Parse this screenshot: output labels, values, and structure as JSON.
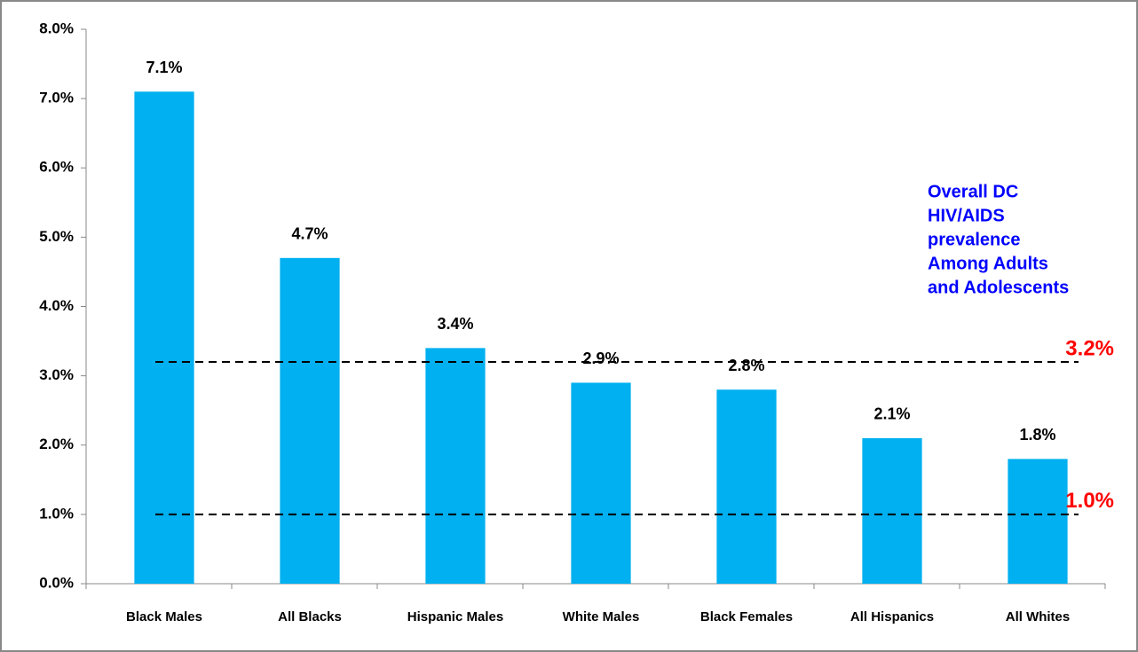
{
  "chart_data": {
    "type": "bar",
    "categories": [
      "Black Males",
      "All Blacks",
      "Hispanic Males",
      "White Males",
      "Black Females",
      "All Hispanics",
      "All Whites"
    ],
    "values": [
      7.1,
      4.7,
      3.4,
      2.9,
      2.8,
      2.1,
      1.8
    ],
    "value_labels": [
      "7.1%",
      "4.7%",
      "3.4%",
      "2.9%",
      "2.8%",
      "2.1%",
      "1.8%"
    ],
    "color": "#00b0f0",
    "ylim": [
      0,
      8
    ],
    "yticks": [
      {
        "value": 0,
        "label": "0.0%"
      },
      {
        "value": 1,
        "label": "1.0%"
      },
      {
        "value": 2,
        "label": "2.0%"
      },
      {
        "value": 3,
        "label": "3.0%"
      },
      {
        "value": 4,
        "label": "4.0%"
      },
      {
        "value": 5,
        "label": "5.0%"
      },
      {
        "value": 6,
        "label": "6.0%"
      },
      {
        "value": 7,
        "label": "7.0%"
      },
      {
        "value": 8,
        "label": "8.0%"
      }
    ],
    "grid": false,
    "reference_lines": [
      {
        "value": 3.2,
        "label": "3.2%",
        "color": "#ff0000"
      },
      {
        "value": 1.0,
        "label": "1.0%",
        "color": "#ff0000"
      }
    ],
    "annotation": {
      "lines": [
        "Overall DC",
        "HIV/AIDS",
        "prevalence",
        "Among Adults",
        "and Adolescents"
      ],
      "color": "#0000ff"
    }
  }
}
